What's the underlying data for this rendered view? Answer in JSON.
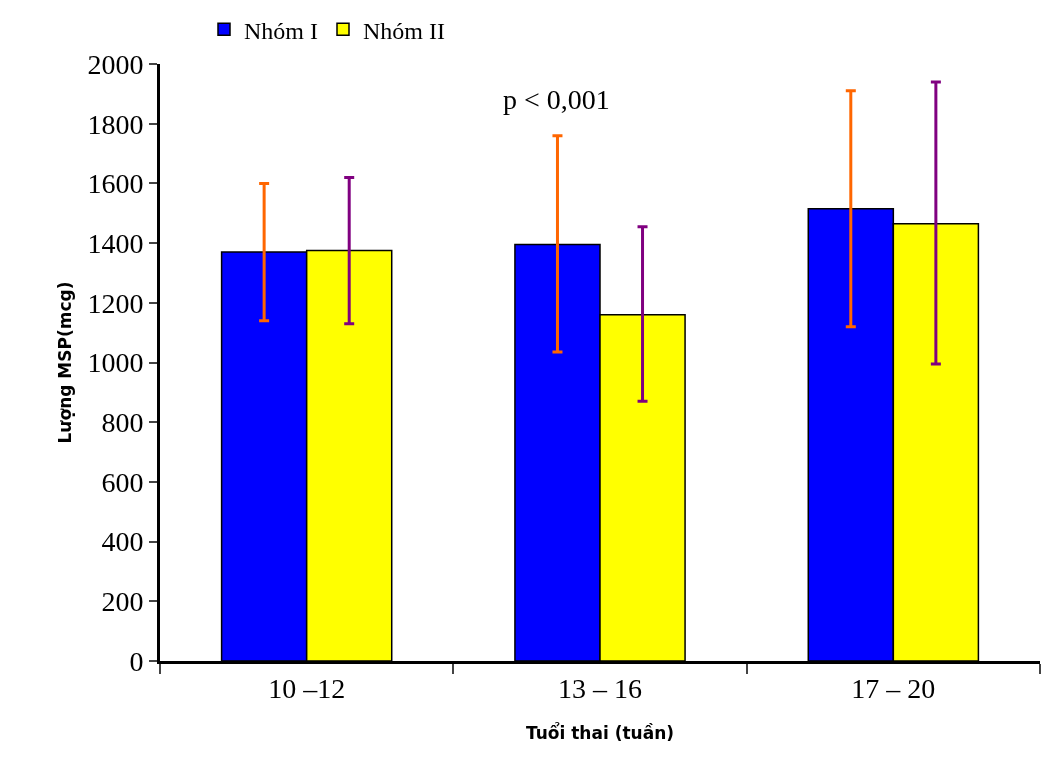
{
  "chart_data": {
    "type": "bar",
    "xlabel": "Tuổi thai (tuần)",
    "ylabel": "Lượng MSP(mcg)",
    "annotations": [
      "p < 0,001"
    ],
    "categories": [
      "10 –12",
      "13 – 16",
      "17 – 20"
    ],
    "series": [
      {
        "name": "Nhóm I",
        "color": "#0000ff",
        "values": [
          1370,
          1395,
          1515
        ],
        "errors": [
          [
            1140,
            1600
          ],
          [
            1035,
            1760
          ],
          [
            1120,
            1910
          ]
        ]
      },
      {
        "name": "Nhóm II",
        "color": "#ffff00",
        "values": [
          1375,
          1160,
          1465
        ],
        "errors": [
          [
            1130,
            1620
          ],
          [
            870,
            1455
          ],
          [
            995,
            1940
          ]
        ]
      }
    ],
    "ylim": [
      0,
      2000
    ],
    "yticks": [
      0,
      200,
      400,
      600,
      800,
      1000,
      1200,
      1400,
      1600,
      1800,
      2000
    ],
    "legend": "top left"
  }
}
